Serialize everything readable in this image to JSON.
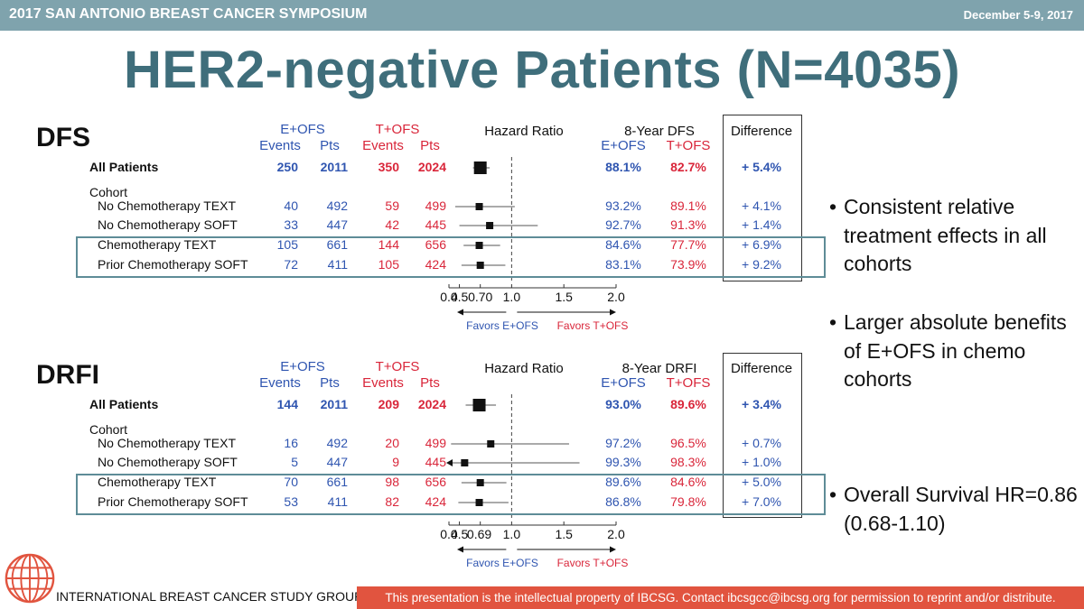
{
  "header": {
    "symposium": "2017 SAN ANTONIO BREAST CANCER SYMPOSIUM",
    "date": "December 5-9, 2017"
  },
  "title": "HER2-negative Patients (N=4035)",
  "common": {
    "eofs": "E+OFS",
    "tofs": "T+OFS",
    "events": "Events",
    "pts": "Pts",
    "hazard_ratio": "Hazard Ratio",
    "difference": "Difference",
    "cohort": "Cohort",
    "favors_e": "Favors E+OFS",
    "favors_t": "Favors T+OFS",
    "axis_ticks": [
      "0.4",
      "0.5",
      "1.0",
      "1.5",
      "2.0"
    ]
  },
  "chart_data": [
    {
      "type": "forest",
      "section_label": "DFS",
      "outcome_header": "8-Year DFS",
      "reference_label": "0.70",
      "reference_hr": 0.7,
      "axis_range": [
        0.4,
        2.0
      ],
      "rows": [
        {
          "label": "All Patients",
          "bold": true,
          "e_events": "250",
          "e_pts": "2011",
          "t_events": "350",
          "t_pts": "2024",
          "e_rate": "88.1%",
          "t_rate": "82.7%",
          "diff": "+ 5.4%",
          "hr": 0.7,
          "lo": 0.63,
          "hi": 0.79
        },
        {
          "label": "No Chemotherapy TEXT",
          "bold": false,
          "e_events": "40",
          "e_pts": "492",
          "t_events": "59",
          "t_pts": "499",
          "e_rate": "93.2%",
          "t_rate": "89.1%",
          "diff": "+ 4.1%",
          "hr": 0.69,
          "lo": 0.46,
          "hi": 1.03
        },
        {
          "label": "No Chemotherapy SOFT",
          "bold": false,
          "e_events": "33",
          "e_pts": "447",
          "t_events": "42",
          "t_pts": "445",
          "e_rate": "92.7%",
          "t_rate": "91.3%",
          "diff": "+ 1.4%",
          "hr": 0.79,
          "lo": 0.5,
          "hi": 1.25
        },
        {
          "label": "Chemotherapy TEXT",
          "bold": false,
          "e_events": "105",
          "e_pts": "661",
          "t_events": "144",
          "t_pts": "656",
          "e_rate": "84.6%",
          "t_rate": "77.7%",
          "diff": "+ 6.9%",
          "hr": 0.69,
          "lo": 0.54,
          "hi": 0.89
        },
        {
          "label": "Prior Chemotherapy SOFT",
          "bold": false,
          "e_events": "72",
          "e_pts": "411",
          "t_events": "105",
          "t_pts": "424",
          "e_rate": "83.1%",
          "t_rate": "73.9%",
          "diff": "+ 9.2%",
          "hr": 0.7,
          "lo": 0.52,
          "hi": 0.94
        }
      ]
    },
    {
      "type": "forest",
      "section_label": "DRFI",
      "outcome_header": "8-Year DRFI",
      "reference_label": "0.69",
      "reference_hr": 0.69,
      "axis_range": [
        0.4,
        2.0
      ],
      "rows": [
        {
          "label": "All Patients",
          "bold": true,
          "e_events": "144",
          "e_pts": "2011",
          "t_events": "209",
          "t_pts": "2024",
          "e_rate": "93.0%",
          "t_rate": "89.6%",
          "diff": "+ 3.4%",
          "hr": 0.69,
          "lo": 0.56,
          "hi": 0.85
        },
        {
          "label": "No Chemotherapy TEXT",
          "bold": false,
          "e_events": "16",
          "e_pts": "492",
          "t_events": "20",
          "t_pts": "499",
          "e_rate": "97.2%",
          "t_rate": "96.5%",
          "diff": "+ 0.7%",
          "hr": 0.8,
          "lo": 0.42,
          "hi": 1.55
        },
        {
          "label": "No Chemotherapy SOFT",
          "bold": false,
          "e_events": "5",
          "e_pts": "447",
          "t_events": "9",
          "t_pts": "445",
          "e_rate": "99.3%",
          "t_rate": "98.3%",
          "diff": "+ 1.0%",
          "hr": 0.55,
          "lo": 0.4,
          "hi": 1.65,
          "lo_arrow": true
        },
        {
          "label": "Chemotherapy TEXT",
          "bold": false,
          "e_events": "70",
          "e_pts": "661",
          "t_events": "98",
          "t_pts": "656",
          "e_rate": "89.6%",
          "t_rate": "84.6%",
          "diff": "+ 5.0%",
          "hr": 0.7,
          "lo": 0.52,
          "hi": 0.95
        },
        {
          "label": "Prior Chemotherapy SOFT",
          "bold": false,
          "e_events": "53",
          "e_pts": "411",
          "t_events": "82",
          "t_pts": "424",
          "e_rate": "86.8%",
          "t_rate": "79.8%",
          "diff": "+ 7.0%",
          "hr": 0.69,
          "lo": 0.49,
          "hi": 0.97
        }
      ]
    }
  ],
  "bullets": [
    "Consistent relative treatment effects in all cohorts",
    "Larger absolute benefits of E+OFS in chemo cohorts",
    "Overall Survival HR=0.86 (0.68-1.10)"
  ],
  "footer": {
    "org": "INTERNATIONAL BREAST CANCER STUDY GROUP",
    "notice": "This presentation is the intellectual property of IBCSG. Contact ibcsgcc@ibcsg.org for permission to reprint and/or distribute."
  }
}
